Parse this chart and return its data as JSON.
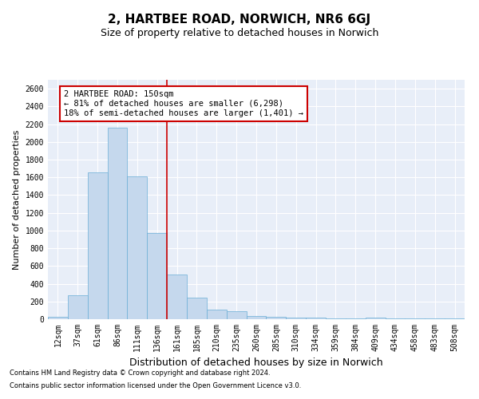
{
  "title": "2, HARTBEE ROAD, NORWICH, NR6 6GJ",
  "subtitle": "Size of property relative to detached houses in Norwich",
  "xlabel": "Distribution of detached houses by size in Norwich",
  "ylabel": "Number of detached properties",
  "footnote1": "Contains HM Land Registry data © Crown copyright and database right 2024.",
  "footnote2": "Contains public sector information licensed under the Open Government Licence v3.0.",
  "annotation_line1": "2 HARTBEE ROAD: 150sqm",
  "annotation_line2": "← 81% of detached houses are smaller (6,298)",
  "annotation_line3": "18% of semi-detached houses are larger (1,401) →",
  "bar_labels": [
    "12sqm",
    "37sqm",
    "61sqm",
    "86sqm",
    "111sqm",
    "136sqm",
    "161sqm",
    "185sqm",
    "210sqm",
    "235sqm",
    "260sqm",
    "285sqm",
    "310sqm",
    "334sqm",
    "359sqm",
    "384sqm",
    "409sqm",
    "434sqm",
    "458sqm",
    "483sqm",
    "508sqm"
  ],
  "bar_values": [
    25,
    270,
    1660,
    2160,
    1610,
    970,
    500,
    240,
    110,
    90,
    35,
    30,
    20,
    15,
    10,
    5,
    20,
    5,
    5,
    10,
    5
  ],
  "bar_color": "#c5d8ed",
  "bar_edgecolor": "#6aaed6",
  "vline_color": "#cc0000",
  "ylim": [
    0,
    2700
  ],
  "yticks": [
    0,
    200,
    400,
    600,
    800,
    1000,
    1200,
    1400,
    1600,
    1800,
    2000,
    2200,
    2400,
    2600
  ],
  "bg_color": "#e8eef8",
  "annotation_box_color": "#cc0000",
  "title_fontsize": 11,
  "subtitle_fontsize": 9,
  "xlabel_fontsize": 9,
  "ylabel_fontsize": 8,
  "tick_fontsize": 7,
  "annotation_fontsize": 7.5,
  "footnote_fontsize": 6
}
